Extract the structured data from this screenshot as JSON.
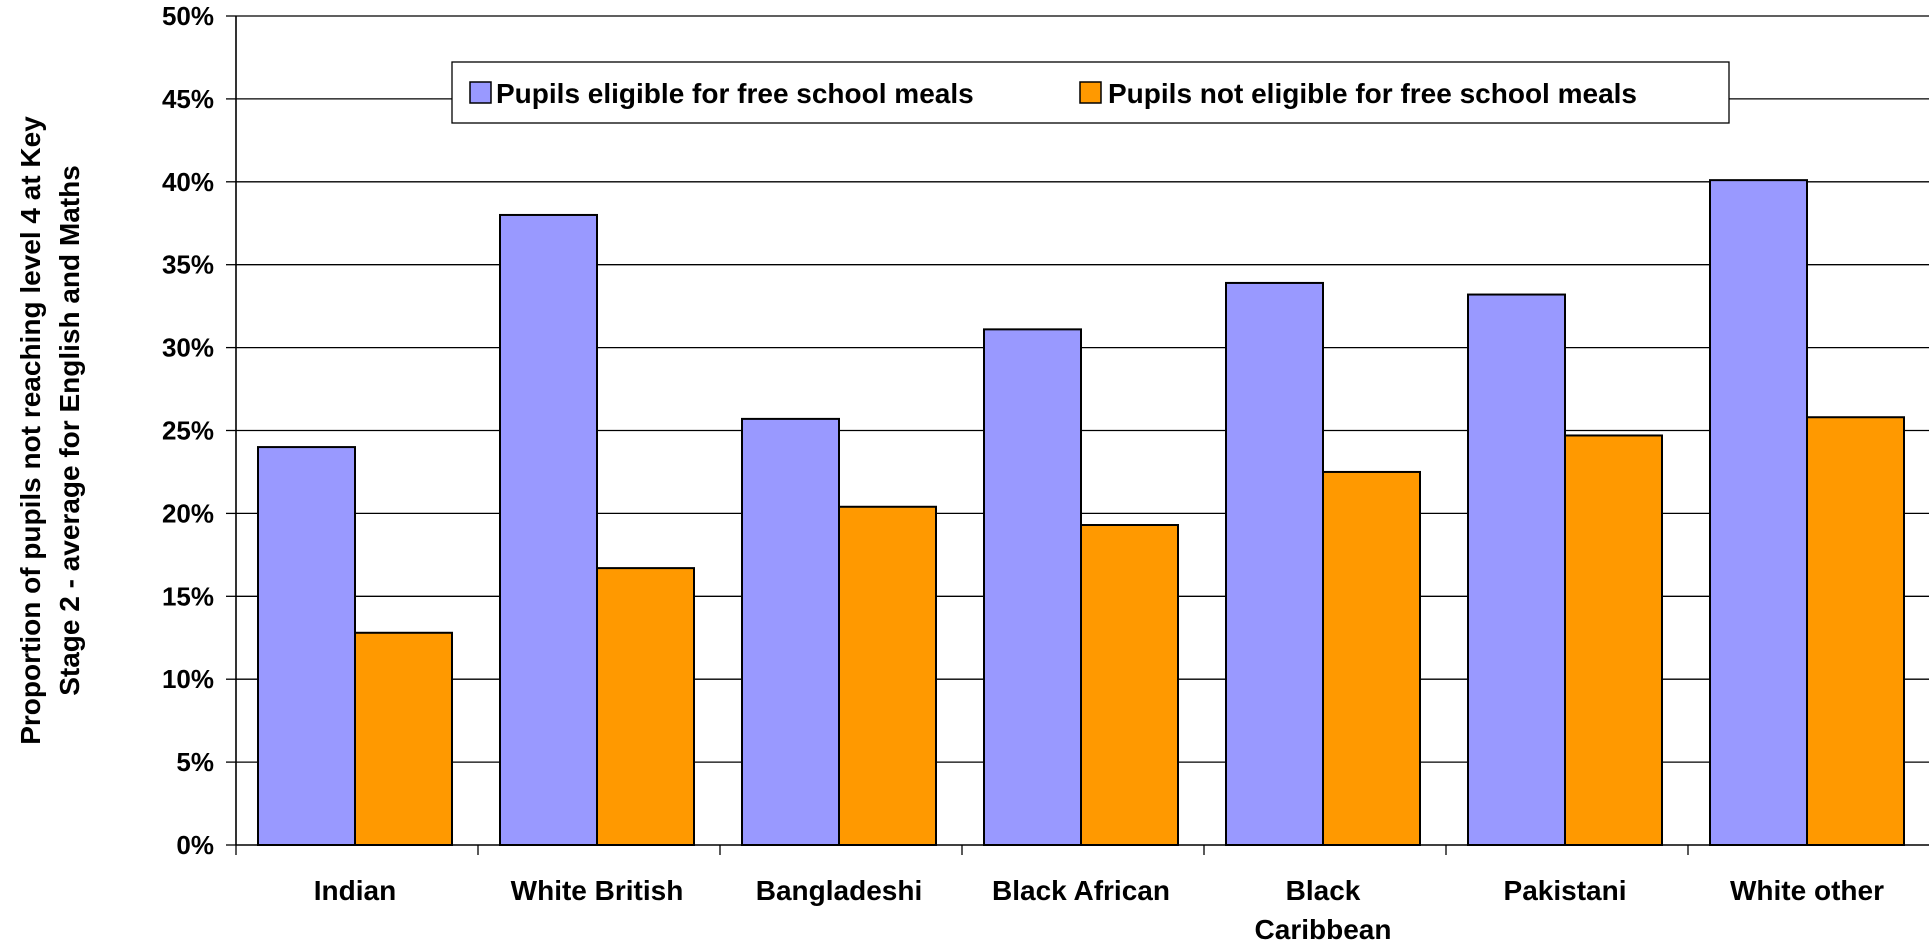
{
  "chart_data": {
    "type": "bar",
    "title": "",
    "xlabel": "",
    "ylabel_lines": [
      "Proportion of pupils not reaching level 4 at Key",
      "Stage 2 - average for English and Maths"
    ],
    "ylim": [
      0,
      50
    ],
    "yticks": [
      0,
      5,
      10,
      15,
      20,
      25,
      30,
      35,
      40,
      45,
      50
    ],
    "ytick_labels": [
      "0%",
      "5%",
      "10%",
      "15%",
      "20%",
      "25%",
      "30%",
      "35%",
      "40%",
      "45%",
      "50%"
    ],
    "grid": "horizontal",
    "legend_position": "top",
    "categories": [
      [
        "Indian"
      ],
      [
        "White British"
      ],
      [
        "Bangladeshi"
      ],
      [
        "Black African"
      ],
      [
        "Black",
        "Caribbean"
      ],
      [
        "Pakistani"
      ],
      [
        "White other"
      ]
    ],
    "series": [
      {
        "name": "Pupils eligible for free school meals",
        "color": "#9999FF",
        "values": [
          24.0,
          38.0,
          25.7,
          31.1,
          33.9,
          33.2,
          40.1
        ]
      },
      {
        "name": "Pupils not eligible for free school meals",
        "color": "#FF9900",
        "values": [
          12.8,
          16.7,
          20.4,
          19.3,
          22.5,
          24.7,
          25.8
        ]
      }
    ]
  }
}
